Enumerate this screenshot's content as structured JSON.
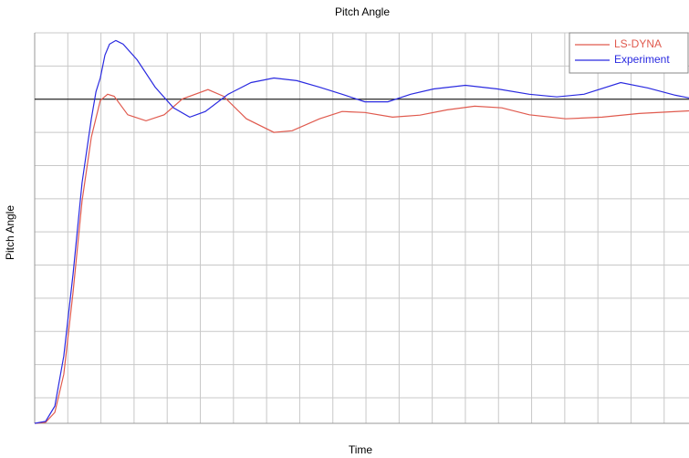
{
  "chart_data": {
    "type": "line",
    "title": "Pitch Angle",
    "x_label": "Time",
    "y_label": "Pitch Angle",
    "xlim": [
      0,
      19.75
    ],
    "ylim": [
      0.23,
      12
    ],
    "xticks": [
      0,
      1,
      2,
      3,
      4,
      5,
      6,
      7,
      8,
      9,
      10,
      11,
      12,
      13,
      14,
      15,
      16,
      17,
      18,
      19
    ],
    "yticks": [
      1,
      2,
      3,
      4,
      5,
      6,
      7,
      8,
      9,
      10,
      11,
      12
    ],
    "reference_line": 10,
    "grid": true,
    "legend": "upper right",
    "series": [
      {
        "name": "LS-DYNA",
        "color": "#e05a4e",
        "x": [
          0,
          0.33,
          0.61,
          0.88,
          1.16,
          1.43,
          1.71,
          1.98,
          2.2,
          2.4,
          2.81,
          3.36,
          3.91,
          4.46,
          5.23,
          5.7,
          6.39,
          7.22,
          7.77,
          8.6,
          9.28,
          9.97,
          10.8,
          11.63,
          12.45,
          13.28,
          14.1,
          14.93,
          16.03,
          17.13,
          18.24,
          19.75
        ],
        "values": [
          0.23,
          0.26,
          0.56,
          1.71,
          4.19,
          6.93,
          8.86,
          9.96,
          10.15,
          10.09,
          9.53,
          9.35,
          9.53,
          10.01,
          10.29,
          10.09,
          9.41,
          9.0,
          9.05,
          9.41,
          9.63,
          9.6,
          9.46,
          9.52,
          9.68,
          9.79,
          9.74,
          9.53,
          9.41,
          9.46,
          9.57,
          9.65
        ]
      },
      {
        "name": "Experiment",
        "color": "#2a2ae0",
        "x": [
          0,
          0.33,
          0.61,
          0.88,
          1.16,
          1.43,
          1.71,
          1.85,
          1.98,
          2.12,
          2.26,
          2.45,
          2.67,
          3.09,
          3.64,
          4.19,
          4.68,
          5.15,
          5.84,
          6.53,
          7.22,
          7.91,
          8.6,
          9.28,
          9.97,
          10.66,
          11.35,
          12.04,
          13.0,
          13.97,
          14.93,
          15.76,
          16.58,
          17.69,
          18.51,
          19.34,
          19.75
        ],
        "values": [
          0.23,
          0.29,
          0.75,
          2.26,
          4.74,
          7.48,
          9.41,
          10.23,
          10.64,
          11.33,
          11.66,
          11.77,
          11.66,
          11.19,
          10.36,
          9.74,
          9.46,
          9.63,
          10.15,
          10.5,
          10.64,
          10.56,
          10.36,
          10.15,
          9.92,
          9.92,
          10.15,
          10.31,
          10.42,
          10.31,
          10.15,
          10.07,
          10.15,
          10.5,
          10.34,
          10.12,
          10.04
        ]
      }
    ]
  }
}
